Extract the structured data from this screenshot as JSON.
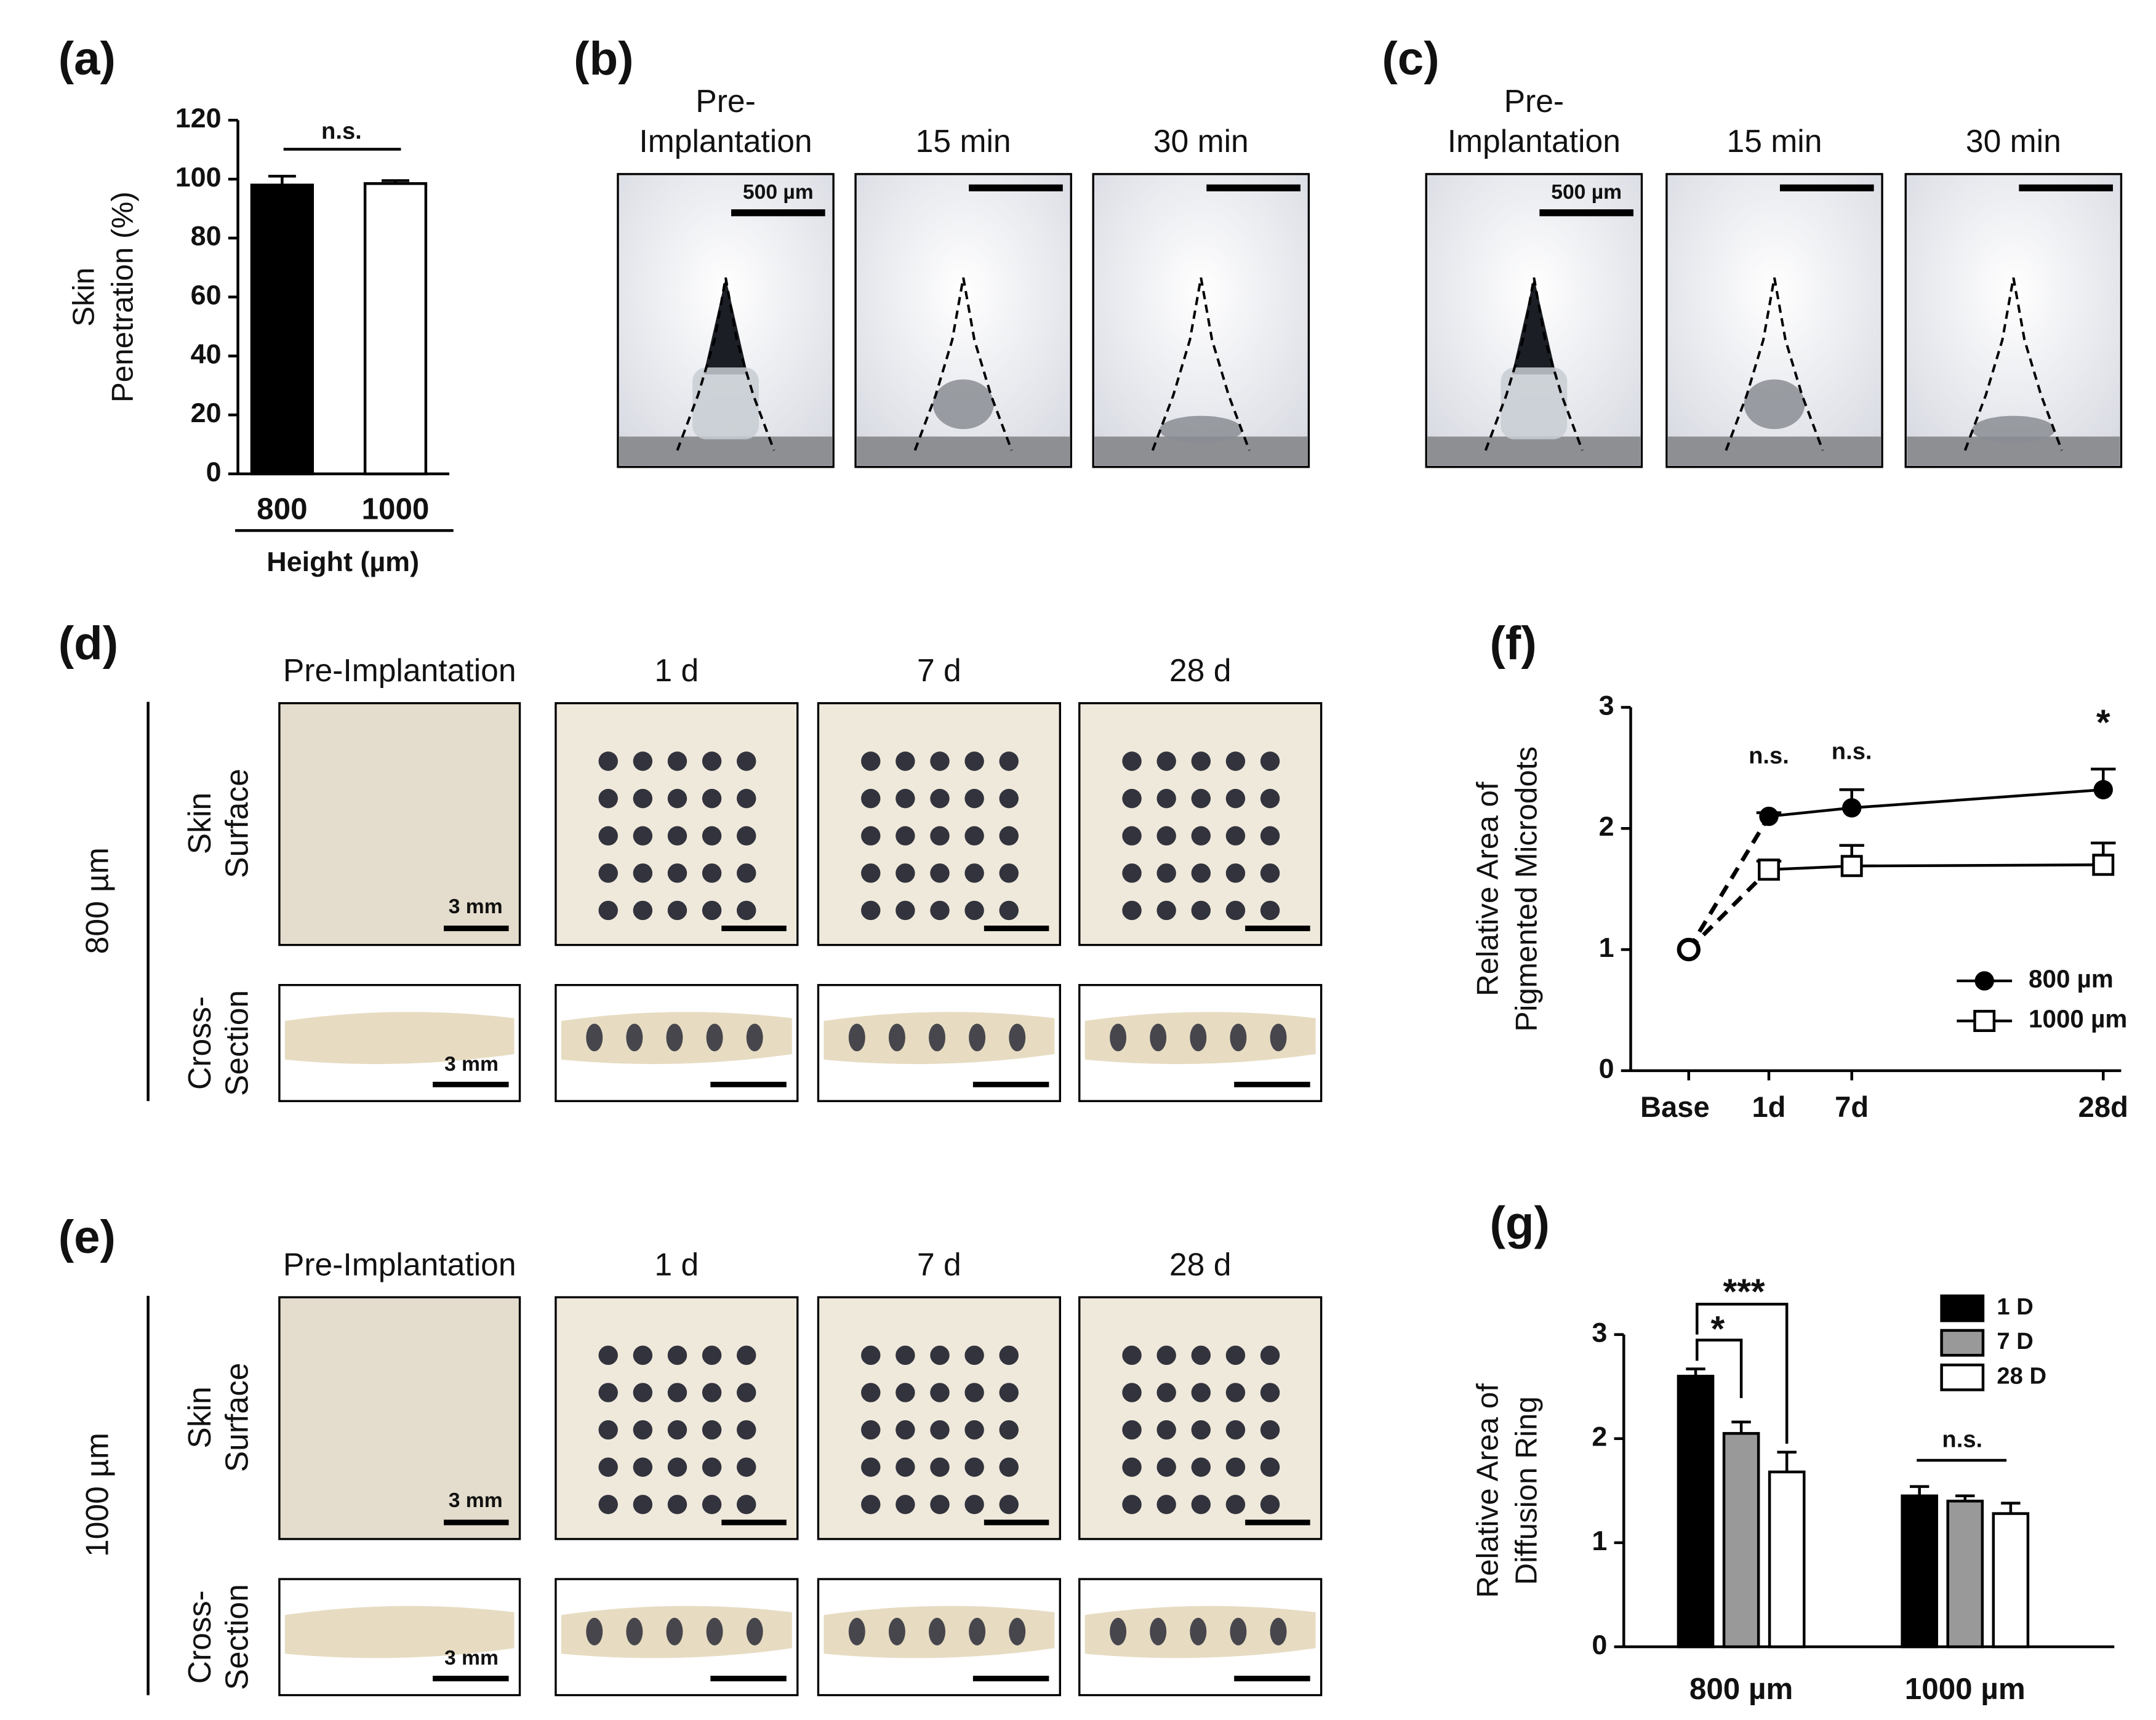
{
  "panel_labels": [
    "(a)",
    "(b)",
    "(c)",
    "(d)",
    "(e)",
    "(f)",
    "(g)"
  ],
  "chart_data": [
    {
      "type": "bar",
      "categories": [
        "800",
        "1000"
      ],
      "values": [
        98,
        98.5
      ],
      "errors": [
        3,
        1
      ],
      "colors": [
        "#000000",
        "#ffffff"
      ],
      "ylim": [
        0,
        120
      ],
      "yticks": [
        0,
        20,
        40,
        60,
        80,
        100,
        120
      ],
      "ylabel": [
        "Skin",
        "Penetration (%)"
      ],
      "xlabel": "Height (µm)",
      "annotations": [
        "n.s."
      ]
    },
    {
      "type": "line",
      "categories": [
        "Base",
        "1d",
        "7d",
        "28d"
      ],
      "series": [
        {
          "name": "800 µm",
          "marker": "filled-circle",
          "values": [
            1,
            2.1,
            2.17,
            2.32
          ],
          "errors": [
            null,
            0.03,
            0.15,
            0.17
          ]
        },
        {
          "name": "1000 µm",
          "marker": "open-square",
          "values": [
            1,
            1.66,
            1.69,
            1.7
          ],
          "errors": [
            null,
            0.07,
            0.17,
            0.18
          ]
        }
      ],
      "ylim": [
        0,
        3
      ],
      "yticks": [
        0,
        1,
        2,
        3
      ],
      "ylabel": [
        "Relative  Area of",
        "Pigmented Microdots"
      ],
      "annotations": [
        "n.s.",
        "n.s.",
        "*"
      ]
    },
    {
      "type": "grouped_bar",
      "categories": [
        "800 µm",
        "1000 µm"
      ],
      "series": [
        {
          "name": "1 D",
          "color": "#000000",
          "values": [
            2.6,
            1.45
          ],
          "errors": [
            0.07,
            0.09
          ]
        },
        {
          "name": "7 D",
          "color": "#999999",
          "values": [
            2.05,
            1.4
          ],
          "errors": [
            0.11,
            0.05
          ]
        },
        {
          "name": "28 D",
          "color": "#ffffff",
          "values": [
            1.68,
            1.28
          ],
          "errors": [
            0.19,
            0.1
          ]
        }
      ],
      "ylim": [
        0,
        3
      ],
      "yticks": [
        0,
        1,
        2,
        3
      ],
      "ylabel": [
        "Relative Area of",
        "Diffusion Ring"
      ],
      "annotations": [
        "*",
        "***",
        "n.s."
      ]
    }
  ],
  "microneedle_panels": [
    {
      "headers": [
        "Pre-",
        "Implantation",
        "15 min",
        "30 min"
      ],
      "scale_bar": "500 µm"
    },
    {
      "headers": [
        "Pre-",
        "Implantation",
        "15 min",
        "30 min"
      ],
      "scale_bar": "500 µm"
    }
  ],
  "skin_panels": [
    {
      "group": "800 µm",
      "headers": [
        "Pre-Implantation",
        "1 d",
        "7 d",
        "28 d"
      ],
      "rows": [
        [
          "Skin",
          "Surface"
        ],
        [
          "Cross-",
          "Section"
        ]
      ],
      "scale_bar": "3 mm"
    },
    {
      "group": "1000 µm",
      "headers": [
        "Pre-Implantation",
        "1 d",
        "7 d",
        "28 d"
      ],
      "rows": [
        [
          "Skin",
          "Surface"
        ],
        [
          "Cross-",
          "Section"
        ]
      ],
      "scale_bar": "3 mm"
    }
  ]
}
